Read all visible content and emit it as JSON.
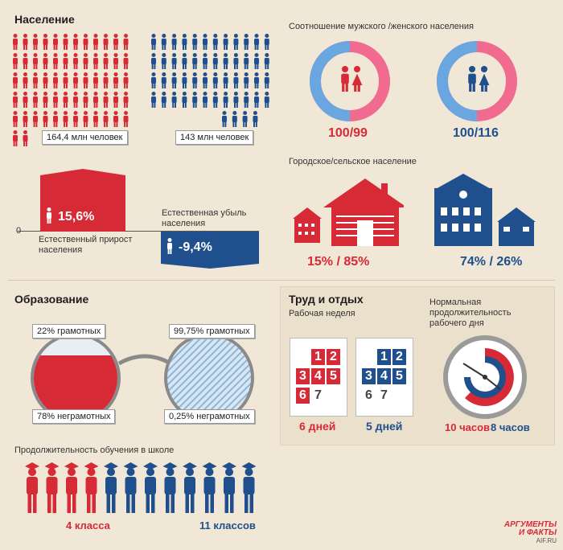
{
  "colors": {
    "red": "#d62b36",
    "blue": "#1f4f8c",
    "pink": "#f06b8f",
    "lightblue": "#6aa6e0",
    "bg": "#f1e7d6"
  },
  "population": {
    "title": "Население",
    "russia_label": "164,4 млн человек",
    "usa_label": "143 млн человек",
    "growth_value": "15,6%",
    "growth_label": "Естественный прирост населения",
    "decline_value": "-9,4%",
    "decline_label": "Естественная убыль населения",
    "axis_zero": "0"
  },
  "gender": {
    "title": "Соотношение мужского /женского населения",
    "left_ratio": "100/99",
    "right_ratio": "100/116",
    "left_male_share": 0.503,
    "right_male_share": 0.463
  },
  "urban": {
    "title": "Городское/сельское население",
    "left": "15% / 85%",
    "right": "74% / 26%"
  },
  "education": {
    "title": "Образование",
    "left_literate": "22% грамотных",
    "left_illiterate": "78% неграмотных",
    "right_literate": "99,75% грамотных",
    "right_illiterate": "0,25% неграмотных",
    "school_title": "Продолжительность обучения в школе",
    "left_years": "4 класса",
    "right_years": "11 классов"
  },
  "work": {
    "title": "Труд и отдых",
    "week_title": "Рабочая неделя",
    "left_days": "6 дней",
    "right_days": "5 дней",
    "day_title": "Нормальная продолжительность рабочего дня",
    "left_hours": "10 часов",
    "right_hours": "8 часов",
    "calendar_digits": [
      "1",
      "2",
      "3",
      "4",
      "5",
      "6",
      "7"
    ]
  },
  "logo": {
    "line1": "АРГУМЕНТЫ",
    "line2": "И ФАКТЫ",
    "site": "AIF.RU"
  }
}
